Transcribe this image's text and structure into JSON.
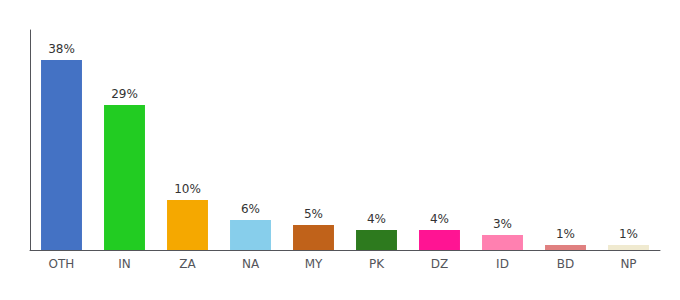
{
  "chart_data": {
    "type": "bar",
    "categories": [
      "OTH",
      "IN",
      "ZA",
      "NA",
      "MY",
      "PK",
      "DZ",
      "ID",
      "BD",
      "NP"
    ],
    "values": [
      38,
      29,
      10,
      6,
      5,
      4,
      4,
      3,
      1,
      1
    ],
    "value_labels": [
      "38%",
      "29%",
      "10%",
      "6%",
      "5%",
      "4%",
      "4%",
      "3%",
      "1%",
      "1%"
    ],
    "colors": [
      "#4472c4",
      "#22cc22",
      "#f5a800",
      "#87ceeb",
      "#c0621a",
      "#2d7a1e",
      "#ff1493",
      "#ff80b0",
      "#e08080",
      "#f0ead0"
    ],
    "ylim": [
      0,
      44
    ],
    "data_labels": true,
    "tick_labels": "x",
    "grid": false
  }
}
